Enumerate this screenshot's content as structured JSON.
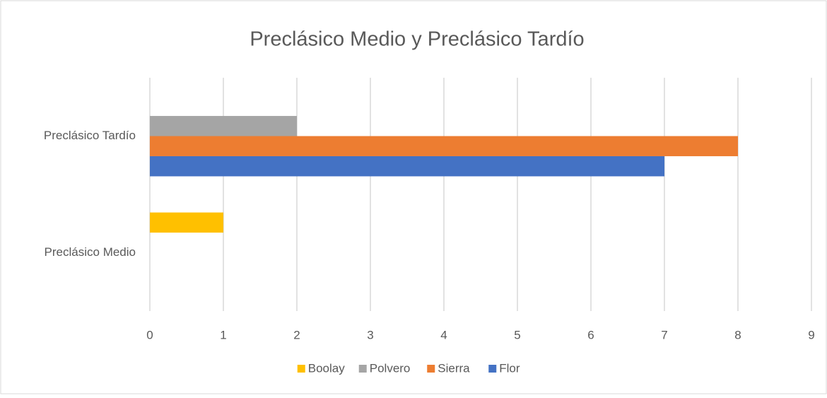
{
  "chart_data": {
    "type": "barh",
    "title": "Preclásico Medio y Preclásico Tardío",
    "categories": [
      "Preclásico Medio",
      "Preclásico Tardío"
    ],
    "series": [
      {
        "name": "Boolay",
        "color": "#ffc000",
        "values": [
          1,
          0
        ]
      },
      {
        "name": "Polvero",
        "color": "#a5a5a5",
        "values": [
          0,
          2
        ]
      },
      {
        "name": "Sierra",
        "color": "#ed7d31",
        "values": [
          0,
          8
        ]
      },
      {
        "name": "Flor",
        "color": "#4472c4",
        "values": [
          0,
          7
        ]
      }
    ],
    "xlim": [
      0,
      9
    ],
    "xticks": [
      0,
      1,
      2,
      3,
      4,
      5,
      6,
      7,
      8,
      9
    ],
    "grid": true,
    "legend": "bottom"
  }
}
